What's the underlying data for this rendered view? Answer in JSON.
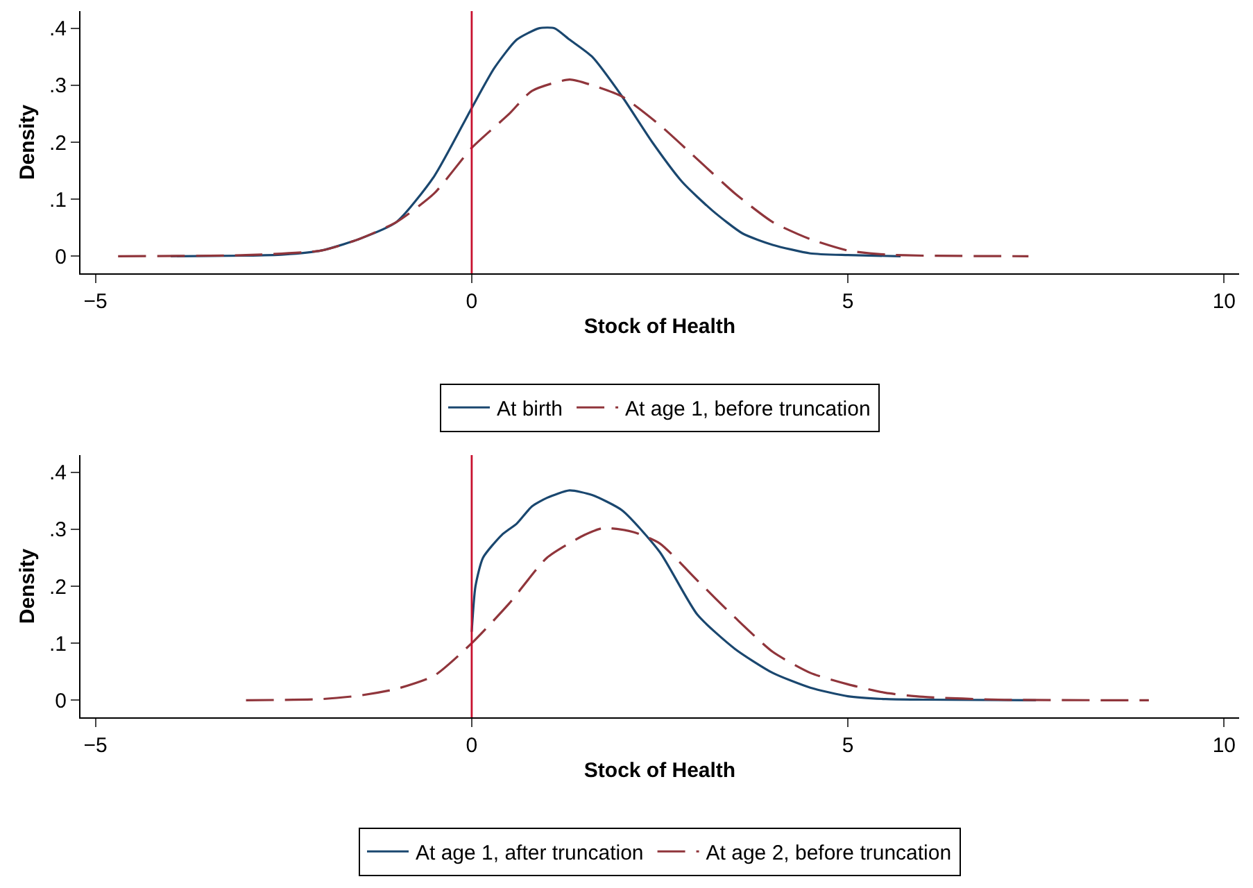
{
  "chart_data": [
    {
      "type": "line",
      "xlabel": "Stock of Health",
      "ylabel": "Density",
      "xlim": [
        -5.2,
        10.2
      ],
      "xticks": [
        {
          "value": -5,
          "label": "−5"
        },
        0,
        5,
        10
      ],
      "ylim": [
        -0.03,
        0.43
      ],
      "yticks": [
        0,
        {
          "value": 0.1,
          "label": ".1"
        },
        {
          "value": 0.2,
          "label": ".2"
        },
        {
          "value": 0.3,
          "label": ".3"
        },
        {
          "value": 0.4,
          "label": ".4"
        }
      ],
      "grid": false,
      "legend": "bottom",
      "marker": "none",
      "ref_lines": [
        {
          "axis": "x",
          "value": 0,
          "color": "#c8102e"
        }
      ],
      "series": [
        {
          "name": "At birth",
          "color": "#1a476f",
          "line_style": "solid",
          "x": [
            -4,
            -3,
            -2.5,
            -2,
            -1.5,
            -1,
            -0.5,
            0,
            0.3,
            0.6,
            0.9,
            1.1,
            1.3,
            1.6,
            2,
            2.4,
            2.8,
            3.2,
            3.6,
            4,
            4.5,
            5,
            5.7
          ],
          "values": [
            0,
            0.001,
            0.003,
            0.01,
            0.03,
            0.06,
            0.14,
            0.26,
            0.33,
            0.38,
            0.4,
            0.4,
            0.38,
            0.35,
            0.28,
            0.2,
            0.13,
            0.08,
            0.04,
            0.02,
            0.005,
            0.002,
            0
          ]
        },
        {
          "name": "At age 1, before truncation",
          "color": "#90353b",
          "line_style": "dashed",
          "x": [
            -4.7,
            -3,
            -2,
            -1.5,
            -1,
            -0.5,
            0,
            0.5,
            0.8,
            1.3,
            1.6,
            2,
            2.5,
            3,
            3.5,
            4,
            4.5,
            5,
            5.5,
            6,
            7.4
          ],
          "values": [
            0,
            0.002,
            0.01,
            0.03,
            0.06,
            0.11,
            0.19,
            0.25,
            0.29,
            0.31,
            0.3,
            0.28,
            0.23,
            0.17,
            0.11,
            0.06,
            0.03,
            0.01,
            0.003,
            0.001,
            0
          ]
        }
      ]
    },
    {
      "type": "line",
      "xlabel": "Stock of Health",
      "ylabel": "Density",
      "xlim": [
        -5.2,
        10.2
      ],
      "xticks": [
        {
          "value": -5,
          "label": "−5"
        },
        0,
        5,
        10
      ],
      "ylim": [
        -0.03,
        0.43
      ],
      "yticks": [
        0,
        {
          "value": 0.1,
          "label": ".1"
        },
        {
          "value": 0.2,
          "label": ".2"
        },
        {
          "value": 0.3,
          "label": ".3"
        },
        {
          "value": 0.4,
          "label": ".4"
        }
      ],
      "grid": false,
      "legend": "bottom",
      "marker": "none",
      "ref_lines": [
        {
          "axis": "x",
          "value": 0,
          "color": "#c8102e"
        }
      ],
      "series": [
        {
          "name": "At age 1, after truncation",
          "color": "#1a476f",
          "line_style": "solid",
          "x": [
            0,
            0.05,
            0.15,
            0.4,
            0.6,
            0.8,
            1,
            1.3,
            1.6,
            2,
            2.5,
            3,
            3.5,
            4,
            4.5,
            5,
            5.5,
            6,
            7.5
          ],
          "values": [
            0.12,
            0.2,
            0.25,
            0.29,
            0.31,
            0.34,
            0.355,
            0.368,
            0.36,
            0.333,
            0.26,
            0.15,
            0.09,
            0.048,
            0.022,
            0.007,
            0.002,
            0.001,
            0
          ]
        },
        {
          "name": "At age 2, before truncation",
          "color": "#90353b",
          "line_style": "dashed",
          "x": [
            -3,
            -2,
            -1.5,
            -1,
            -0.5,
            0,
            0.5,
            1,
            1.5,
            1.75,
            2.15,
            2.5,
            3,
            3.5,
            4,
            4.5,
            5,
            5.5,
            6,
            7,
            9
          ],
          "values": [
            0,
            0.002,
            0.008,
            0.02,
            0.043,
            0.1,
            0.17,
            0.25,
            0.29,
            0.302,
            0.295,
            0.275,
            0.21,
            0.145,
            0.085,
            0.048,
            0.028,
            0.013,
            0.006,
            0.001,
            0
          ]
        }
      ]
    }
  ]
}
